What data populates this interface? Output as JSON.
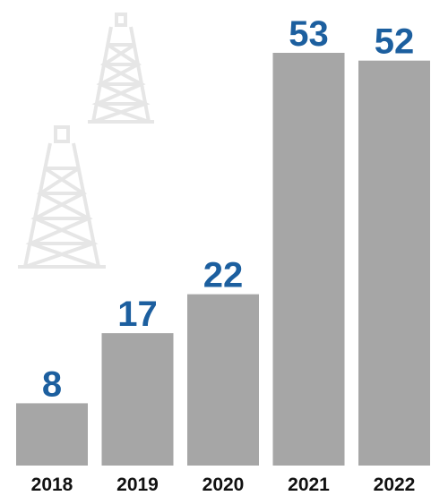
{
  "chart_data": {
    "type": "bar",
    "categories": [
      "2018",
      "2019",
      "2020",
      "2021",
      "2022"
    ],
    "values": [
      8,
      17,
      22,
      53,
      52
    ],
    "color": "#a6a6a6",
    "label_color": "#1c5f9f"
  }
}
